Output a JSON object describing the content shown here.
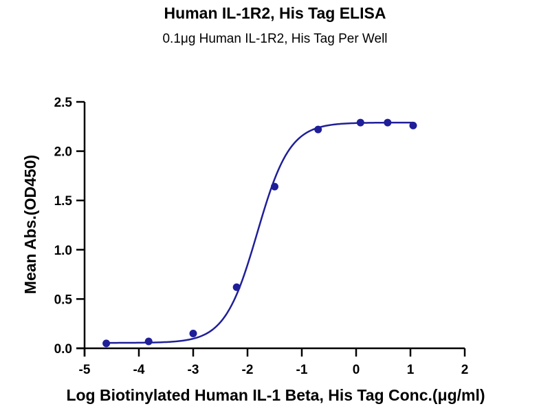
{
  "chart_data": {
    "type": "scatter",
    "title": "Human IL-1R2, His Tag ELISA",
    "subtitle": "0.1μg Human IL-1R2, His Tag Per Well",
    "xlabel": "Log Biotinylated Human IL-1 Beta, His Tag Conc.(μg/ml)",
    "ylabel": "Mean Abs.(OD450)",
    "xlim": [
      -5,
      2
    ],
    "ylim": [
      0,
      2.5
    ],
    "x_ticks": [
      "-5",
      "-4",
      "-3",
      "-2",
      "-1",
      "0",
      "1",
      "2"
    ],
    "y_ticks": [
      "0.0",
      "0.5",
      "1.0",
      "1.5",
      "2.0",
      "2.5"
    ],
    "grid": false,
    "series": [
      {
        "color": "#1f1f99",
        "x": [
          -4.6,
          -3.82,
          -3.0,
          -2.2,
          -1.5,
          -0.7,
          0.08,
          0.58,
          1.05
        ],
        "y": [
          0.05,
          0.07,
          0.15,
          0.62,
          1.64,
          2.22,
          2.29,
          2.29,
          2.26
        ]
      }
    ],
    "fit_curve": {
      "bottom": 0.055,
      "top": 2.29,
      "log_ec50": -1.82,
      "hill_slope": 1.45,
      "color": "#1f1f99"
    }
  }
}
